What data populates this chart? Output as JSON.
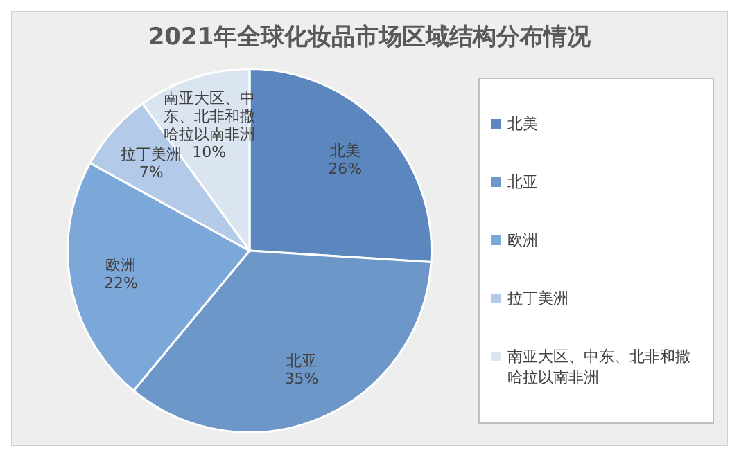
{
  "chart_data": {
    "type": "pie",
    "title": "2021年全球化妆品市场区域结构分布情况",
    "categories": [
      "北美",
      "北亚",
      "欧洲",
      "拉丁美洲",
      "南亚大区、中东、北非和撒哈拉以南非洲"
    ],
    "values": [
      26,
      35,
      22,
      7,
      10
    ],
    "colors": [
      "#5b87be",
      "#6d96c9",
      "#7ba7d9",
      "#b3cbe8",
      "#dbe5f2"
    ],
    "value_labels": [
      "26%",
      "35%",
      "22%",
      "7%",
      "10%"
    ],
    "legend": "right"
  }
}
